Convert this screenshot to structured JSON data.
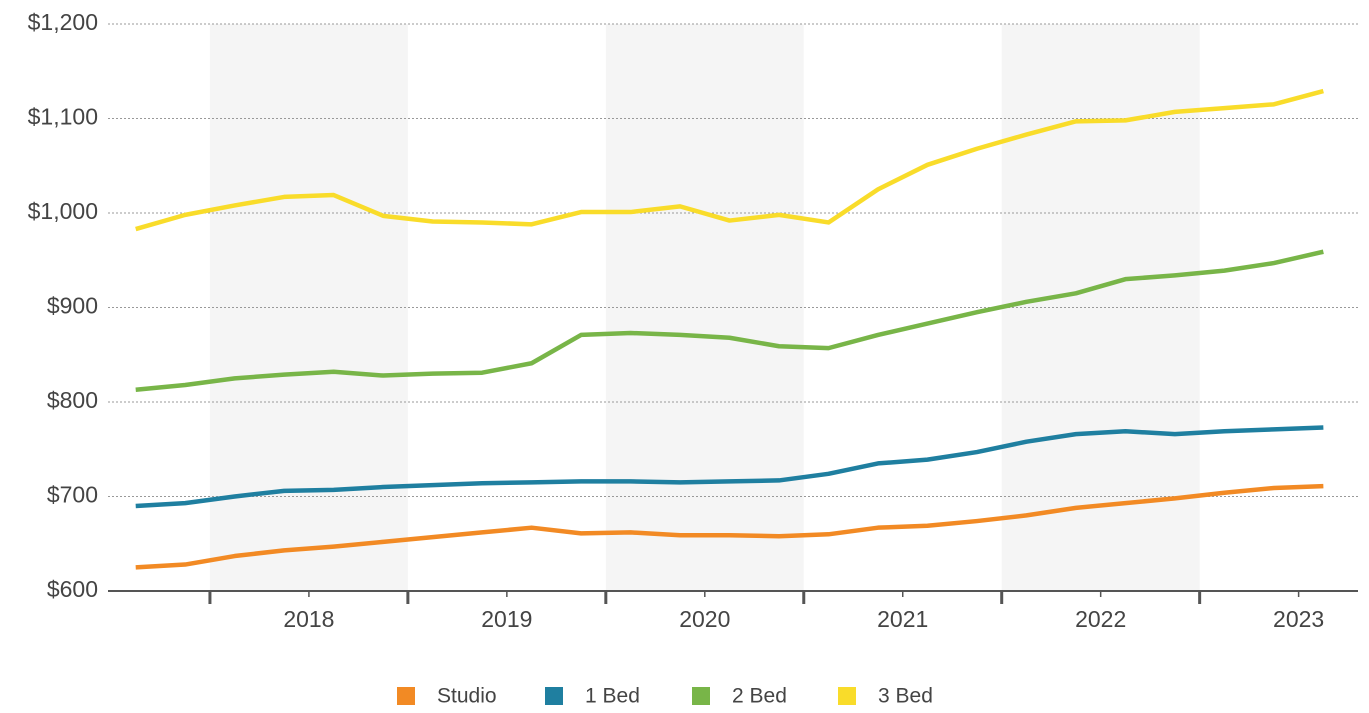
{
  "chart_data": {
    "type": "line",
    "x": [
      2017.625,
      2017.875,
      2018.125,
      2018.375,
      2018.625,
      2018.875,
      2019.125,
      2019.375,
      2019.625,
      2019.875,
      2020.125,
      2020.375,
      2020.625,
      2020.875,
      2021.125,
      2021.375,
      2021.625,
      2021.875,
      2022.125,
      2022.375,
      2022.625,
      2022.875,
      2023.125,
      2023.375,
      2023.625
    ],
    "series": [
      {
        "name": "Studio",
        "color": "#f28a24",
        "values": [
          625,
          628,
          637,
          643,
          647,
          652,
          657,
          662,
          667,
          661,
          662,
          659,
          659,
          658,
          660,
          667,
          669,
          674,
          680,
          688,
          693,
          698,
          704,
          709,
          711
        ]
      },
      {
        "name": "1 Bed",
        "color": "#1f7fa0",
        "values": [
          690,
          693,
          700,
          706,
          707,
          710,
          712,
          714,
          715,
          716,
          716,
          715,
          716,
          717,
          724,
          735,
          739,
          747,
          758,
          766,
          769,
          766,
          769,
          771,
          773
        ]
      },
      {
        "name": "2 Bed",
        "color": "#78b548",
        "values": [
          813,
          818,
          825,
          829,
          832,
          828,
          830,
          831,
          841,
          871,
          873,
          871,
          868,
          859,
          857,
          871,
          883,
          895,
          906,
          915,
          930,
          934,
          939,
          947,
          959
        ]
      },
      {
        "name": "3 Bed",
        "color": "#f9dc2a",
        "values": [
          983,
          998,
          1008,
          1017,
          1019,
          997,
          991,
          990,
          988,
          1001,
          1001,
          1007,
          992,
          998,
          990,
          1025,
          1051,
          1068,
          1083,
          1097,
          1098,
          1107,
          1111,
          1115,
          1129
        ]
      }
    ],
    "xlim": [
      2017.485,
      2023.8
    ],
    "xticks": [
      {
        "value": 2018.5,
        "label": "2018"
      },
      {
        "value": 2019.5,
        "label": "2019"
      },
      {
        "value": 2020.5,
        "label": "2020"
      },
      {
        "value": 2021.5,
        "label": "2021"
      },
      {
        "value": 2022.5,
        "label": "2022"
      },
      {
        "value": 2023.5,
        "label": "2023"
      }
    ],
    "ylim": [
      600,
      1200
    ],
    "yticks": [
      {
        "value": 600,
        "label": "$600"
      },
      {
        "value": 700,
        "label": "$700"
      },
      {
        "value": 800,
        "label": "$800"
      },
      {
        "value": 900,
        "label": "$900"
      },
      {
        "value": 1000,
        "label": "$1,000"
      },
      {
        "value": 1100,
        "label": "$1,100"
      },
      {
        "value": 1200,
        "label": "$1,200"
      }
    ],
    "grid": true,
    "alternate_shading": true,
    "legend": "bottom"
  }
}
